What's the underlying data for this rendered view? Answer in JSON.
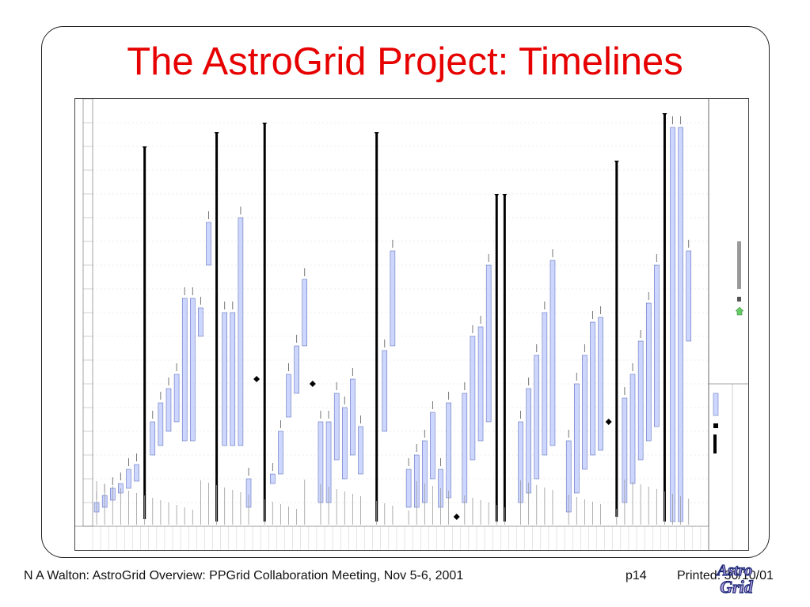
{
  "slide": {
    "title": "The AstroGrid Project: Timelines",
    "footer_left": "N A Walton: AstroGrid Overview: PPGrid Collaboration Meeting, Nov 5-6, 2001",
    "footer_page": "p14",
    "footer_printed": "Printed: 30/10/01"
  },
  "logo": {
    "text_top": "Astro",
    "text_bottom": "Grid",
    "colors": {
      "fill": "#b39ddb",
      "outline": "#1e2a78"
    }
  },
  "colors": {
    "title": "#e60000",
    "task_bar": "#ccd6ff",
    "summary_bar": "#000000",
    "grid_line": "#c8c8c8"
  }
}
